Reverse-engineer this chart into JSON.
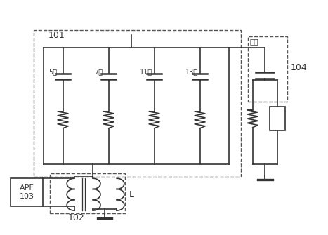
{
  "fig_width": 4.67,
  "fig_height": 3.35,
  "dpi": 100,
  "bg_color": "#ffffff",
  "line_color": "#333333",
  "lw": 1.2,
  "label_101": "101",
  "label_102": "102",
  "label_103": "APF\n103",
  "label_104": "104",
  "label_high": "高通",
  "label_L": "L",
  "harmonics": [
    "5次",
    "7次",
    "11次",
    "13次"
  ]
}
